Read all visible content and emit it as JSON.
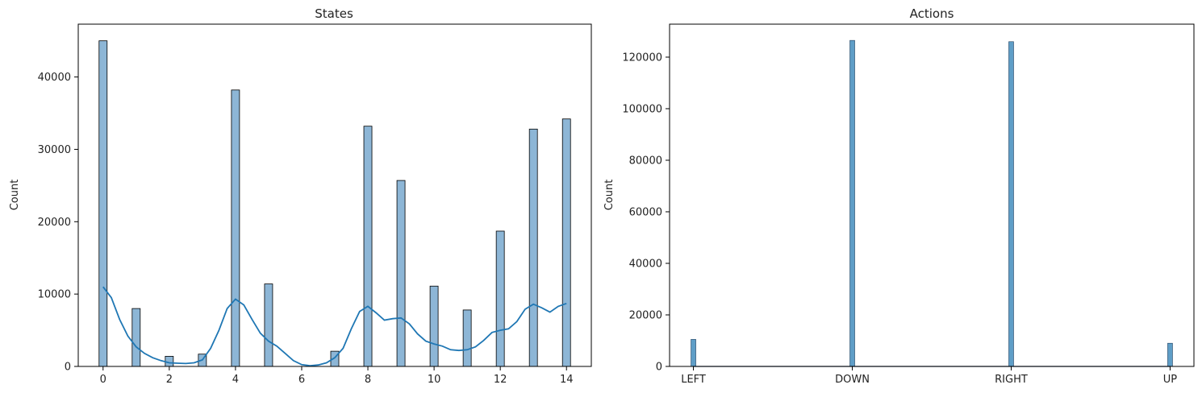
{
  "chart_data": [
    {
      "type": "bar",
      "title": "States",
      "xlabel": "",
      "ylabel": "Count",
      "xlim": [
        -0.75,
        14.75
      ],
      "ylim": [
        0,
        47300
      ],
      "xticks": [
        0,
        2,
        4,
        6,
        8,
        10,
        12,
        14
      ],
      "yticks": [
        0,
        10000,
        20000,
        30000,
        40000
      ],
      "bar_color": "#8db6d6",
      "kde_color": "#1f77b4",
      "bars": [
        {
          "x": 0,
          "value": 45000
        },
        {
          "x": 1,
          "value": 8000
        },
        {
          "x": 2,
          "value": 1400
        },
        {
          "x": 3,
          "value": 1700
        },
        {
          "x": 4,
          "value": 38200
        },
        {
          "x": 5,
          "value": 11400
        },
        {
          "x": 7,
          "value": 2100
        },
        {
          "x": 8,
          "value": 33200
        },
        {
          "x": 9,
          "value": 25700
        },
        {
          "x": 10,
          "value": 11100
        },
        {
          "x": 11,
          "value": 7800
        },
        {
          "x": 12,
          "value": 18700
        },
        {
          "x": 13,
          "value": 32800
        },
        {
          "x": 14,
          "value": 34200
        }
      ],
      "kde": [
        [
          0,
          11000
        ],
        [
          0.25,
          9500
        ],
        [
          0.5,
          6500
        ],
        [
          0.75,
          4200
        ],
        [
          1,
          2700
        ],
        [
          1.25,
          1800
        ],
        [
          1.5,
          1200
        ],
        [
          1.75,
          800
        ],
        [
          2,
          500
        ],
        [
          2.25,
          450
        ],
        [
          2.5,
          400
        ],
        [
          2.75,
          500
        ],
        [
          3,
          900
        ],
        [
          3.25,
          2500
        ],
        [
          3.5,
          5000
        ],
        [
          3.75,
          8000
        ],
        [
          4,
          9300
        ],
        [
          4.25,
          8500
        ],
        [
          4.5,
          6500
        ],
        [
          4.75,
          4600
        ],
        [
          5,
          3500
        ],
        [
          5.25,
          2800
        ],
        [
          5.5,
          1800
        ],
        [
          5.75,
          800
        ],
        [
          6,
          250
        ],
        [
          6.25,
          100
        ],
        [
          6.5,
          200
        ],
        [
          6.75,
          500
        ],
        [
          7,
          1200
        ],
        [
          7.25,
          2500
        ],
        [
          7.5,
          5200
        ],
        [
          7.75,
          7600
        ],
        [
          8,
          8300
        ],
        [
          8.25,
          7400
        ],
        [
          8.5,
          6400
        ],
        [
          8.75,
          6600
        ],
        [
          9,
          6700
        ],
        [
          9.25,
          5900
        ],
        [
          9.5,
          4500
        ],
        [
          9.75,
          3500
        ],
        [
          10,
          3100
        ],
        [
          10.25,
          2800
        ],
        [
          10.5,
          2300
        ],
        [
          10.75,
          2200
        ],
        [
          11,
          2300
        ],
        [
          11.25,
          2700
        ],
        [
          11.5,
          3600
        ],
        [
          11.75,
          4700
        ],
        [
          12,
          5000
        ],
        [
          12.25,
          5200
        ],
        [
          12.5,
          6200
        ],
        [
          12.75,
          7900
        ],
        [
          13,
          8600
        ],
        [
          13.25,
          8100
        ],
        [
          13.5,
          7500
        ],
        [
          13.75,
          8300
        ],
        [
          14,
          8700
        ]
      ]
    },
    {
      "type": "bar",
      "title": "Actions",
      "xlabel": "",
      "ylabel": "Count",
      "categories": [
        "LEFT",
        "DOWN",
        "RIGHT",
        "UP"
      ],
      "values": [
        10500,
        126500,
        126000,
        9000
      ],
      "xlim": [
        -0.15,
        3.15
      ],
      "ylim": [
        0,
        132800
      ],
      "yticks": [
        0,
        20000,
        40000,
        60000,
        80000,
        100000,
        120000
      ],
      "bar_color": "#5f9ec7"
    }
  ]
}
